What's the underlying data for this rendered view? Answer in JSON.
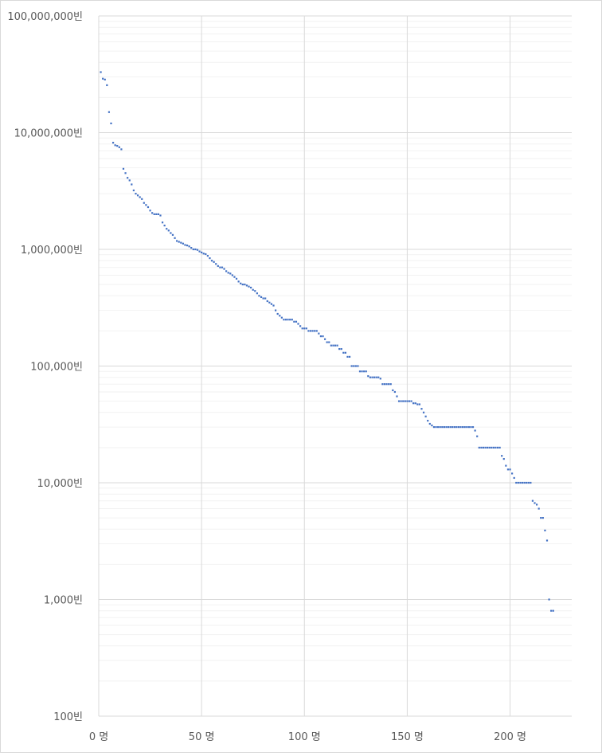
{
  "chart_data": {
    "type": "scatter",
    "title": "",
    "xlabel": "",
    "ylabel": "",
    "x_scale": "linear",
    "y_scale": "log",
    "xlim": [
      0,
      230
    ],
    "ylim": [
      100,
      100000000
    ],
    "x_ticks": [
      0,
      50,
      100,
      150,
      200
    ],
    "x_tick_labels": [
      "0 명",
      "50 명",
      "100 명",
      "150 명",
      "200 명"
    ],
    "y_ticks": [
      100,
      1000,
      10000,
      100000,
      1000000,
      10000000,
      100000000
    ],
    "y_tick_labels": [
      "100빈",
      "1,000빈",
      "10,000빈",
      "100,000빈",
      "1,000,000빈",
      "10,000,000빈",
      "100,000,000빈"
    ],
    "grid": {
      "major_vertical": true,
      "major_horizontal": true,
      "minor_horizontal": true
    },
    "marker_color": "#4472c4",
    "gridline_color": "#d9d9d9",
    "minor_gridline_color": "#f2f2f2",
    "series": [
      {
        "points": [
          [
            1,
            33000000
          ],
          [
            2,
            29000000
          ],
          [
            3,
            28500000
          ],
          [
            4,
            25500000
          ],
          [
            5,
            15000000
          ],
          [
            6,
            12000000
          ],
          [
            7,
            8200000
          ],
          [
            8,
            7800000
          ],
          [
            9,
            7700000
          ],
          [
            10,
            7500000
          ],
          [
            11,
            7200000
          ],
          [
            12,
            4900000
          ],
          [
            13,
            4500000
          ],
          [
            14,
            4100000
          ],
          [
            15,
            3900000
          ],
          [
            16,
            3600000
          ],
          [
            17,
            3200000
          ],
          [
            18,
            3000000
          ],
          [
            19,
            2900000
          ],
          [
            20,
            2800000
          ],
          [
            21,
            2700000
          ],
          [
            22,
            2500000
          ],
          [
            23,
            2400000
          ],
          [
            24,
            2300000
          ],
          [
            25,
            2150000
          ],
          [
            26,
            2050000
          ],
          [
            27,
            2000000
          ],
          [
            28,
            2000000
          ],
          [
            29,
            2000000
          ],
          [
            30,
            1950000
          ],
          [
            31,
            1700000
          ],
          [
            32,
            1600000
          ],
          [
            33,
            1500000
          ],
          [
            34,
            1450000
          ],
          [
            35,
            1380000
          ],
          [
            36,
            1330000
          ],
          [
            37,
            1250000
          ],
          [
            38,
            1180000
          ],
          [
            39,
            1160000
          ],
          [
            40,
            1140000
          ],
          [
            41,
            1120000
          ],
          [
            42,
            1090000
          ],
          [
            43,
            1080000
          ],
          [
            44,
            1060000
          ],
          [
            45,
            1030000
          ],
          [
            46,
            1000000
          ],
          [
            47,
            1000000
          ],
          [
            48,
            990000
          ],
          [
            49,
            960000
          ],
          [
            50,
            940000
          ],
          [
            51,
            920000
          ],
          [
            52,
            910000
          ],
          [
            53,
            880000
          ],
          [
            54,
            840000
          ],
          [
            55,
            800000
          ],
          [
            56,
            780000
          ],
          [
            57,
            750000
          ],
          [
            58,
            720000
          ],
          [
            59,
            700000
          ],
          [
            60,
            700000
          ],
          [
            61,
            680000
          ],
          [
            62,
            650000
          ],
          [
            63,
            630000
          ],
          [
            64,
            620000
          ],
          [
            65,
            600000
          ],
          [
            66,
            580000
          ],
          [
            67,
            560000
          ],
          [
            68,
            530000
          ],
          [
            69,
            510000
          ],
          [
            70,
            500000
          ],
          [
            71,
            500000
          ],
          [
            72,
            490000
          ],
          [
            73,
            480000
          ],
          [
            74,
            470000
          ],
          [
            75,
            450000
          ],
          [
            76,
            440000
          ],
          [
            77,
            420000
          ],
          [
            78,
            400000
          ],
          [
            79,
            390000
          ],
          [
            80,
            380000
          ],
          [
            81,
            380000
          ],
          [
            82,
            360000
          ],
          [
            83,
            350000
          ],
          [
            84,
            340000
          ],
          [
            85,
            330000
          ],
          [
            86,
            300000
          ],
          [
            87,
            280000
          ],
          [
            88,
            270000
          ],
          [
            89,
            260000
          ],
          [
            90,
            250000
          ],
          [
            91,
            250000
          ],
          [
            92,
            250000
          ],
          [
            93,
            250000
          ],
          [
            94,
            250000
          ],
          [
            95,
            240000
          ],
          [
            96,
            240000
          ],
          [
            97,
            230000
          ],
          [
            98,
            220000
          ],
          [
            99,
            210000
          ],
          [
            100,
            210000
          ],
          [
            101,
            210000
          ],
          [
            102,
            200000
          ],
          [
            103,
            200000
          ],
          [
            104,
            200000
          ],
          [
            105,
            200000
          ],
          [
            106,
            200000
          ],
          [
            107,
            190000
          ],
          [
            108,
            180000
          ],
          [
            109,
            180000
          ],
          [
            110,
            170000
          ],
          [
            111,
            160000
          ],
          [
            112,
            160000
          ],
          [
            113,
            150000
          ],
          [
            114,
            150000
          ],
          [
            115,
            150000
          ],
          [
            116,
            150000
          ],
          [
            117,
            140000
          ],
          [
            118,
            140000
          ],
          [
            119,
            130000
          ],
          [
            120,
            130000
          ],
          [
            121,
            120000
          ],
          [
            122,
            120000
          ],
          [
            123,
            100000
          ],
          [
            124,
            100000
          ],
          [
            125,
            100000
          ],
          [
            126,
            100000
          ],
          [
            127,
            90000
          ],
          [
            128,
            90000
          ],
          [
            129,
            90000
          ],
          [
            130,
            90000
          ],
          [
            131,
            82000
          ],
          [
            132,
            80000
          ],
          [
            133,
            80000
          ],
          [
            134,
            80000
          ],
          [
            135,
            80000
          ],
          [
            136,
            80000
          ],
          [
            137,
            78000
          ],
          [
            138,
            70000
          ],
          [
            139,
            70000
          ],
          [
            140,
            70000
          ],
          [
            141,
            70000
          ],
          [
            142,
            70000
          ],
          [
            143,
            62000
          ],
          [
            144,
            60000
          ],
          [
            145,
            55000
          ],
          [
            146,
            50000
          ],
          [
            147,
            50000
          ],
          [
            148,
            50000
          ],
          [
            149,
            50000
          ],
          [
            150,
            50000
          ],
          [
            151,
            50000
          ],
          [
            152,
            50000
          ],
          [
            153,
            48000
          ],
          [
            154,
            48000
          ],
          [
            155,
            47000
          ],
          [
            156,
            47000
          ],
          [
            157,
            43000
          ],
          [
            158,
            40000
          ],
          [
            159,
            37000
          ],
          [
            160,
            34000
          ],
          [
            161,
            32000
          ],
          [
            162,
            31000
          ],
          [
            163,
            30000
          ],
          [
            164,
            30000
          ],
          [
            165,
            30000
          ],
          [
            166,
            30000
          ],
          [
            167,
            30000
          ],
          [
            168,
            30000
          ],
          [
            169,
            30000
          ],
          [
            170,
            30000
          ],
          [
            171,
            30000
          ],
          [
            172,
            30000
          ],
          [
            173,
            30000
          ],
          [
            174,
            30000
          ],
          [
            175,
            30000
          ],
          [
            176,
            30000
          ],
          [
            177,
            30000
          ],
          [
            178,
            30000
          ],
          [
            179,
            30000
          ],
          [
            180,
            30000
          ],
          [
            181,
            30000
          ],
          [
            182,
            30000
          ],
          [
            183,
            28000
          ],
          [
            184,
            25000
          ],
          [
            185,
            20000
          ],
          [
            186,
            20000
          ],
          [
            187,
            20000
          ],
          [
            188,
            20000
          ],
          [
            189,
            20000
          ],
          [
            190,
            20000
          ],
          [
            191,
            20000
          ],
          [
            192,
            20000
          ],
          [
            193,
            20000
          ],
          [
            194,
            20000
          ],
          [
            195,
            20000
          ],
          [
            196,
            17000
          ],
          [
            197,
            16000
          ],
          [
            198,
            14000
          ],
          [
            199,
            13000
          ],
          [
            200,
            13000
          ],
          [
            201,
            12000
          ],
          [
            202,
            11000
          ],
          [
            203,
            10000
          ],
          [
            204,
            10000
          ],
          [
            205,
            10000
          ],
          [
            206,
            10000
          ],
          [
            207,
            10000
          ],
          [
            208,
            10000
          ],
          [
            209,
            10000
          ],
          [
            210,
            10000
          ],
          [
            211,
            7000
          ],
          [
            212,
            6700
          ],
          [
            213,
            6500
          ],
          [
            214,
            6000
          ],
          [
            215,
            5000
          ],
          [
            216,
            5000
          ],
          [
            217,
            3900
          ],
          [
            218,
            3200
          ],
          [
            219,
            1000
          ],
          [
            220,
            800
          ],
          [
            221,
            800
          ]
        ]
      }
    ]
  }
}
